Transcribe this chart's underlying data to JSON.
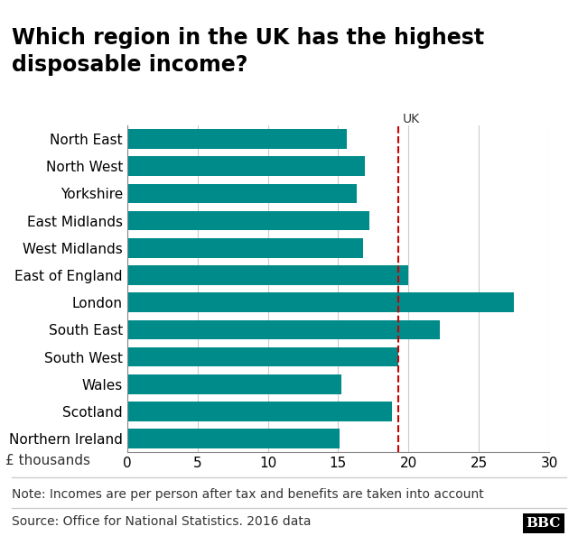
{
  "title": "Which region in the UK has the highest\ndisposable income?",
  "regions": [
    "North East",
    "North West",
    "Yorkshire",
    "East Midlands",
    "West Midlands",
    "East of England",
    "London",
    "South East",
    "South West",
    "Wales",
    "Scotland",
    "Northern Ireland"
  ],
  "values": [
    15.6,
    16.9,
    16.3,
    17.2,
    16.8,
    20.0,
    27.5,
    22.2,
    19.3,
    15.2,
    18.8,
    15.1
  ],
  "bar_color": "#008b8b",
  "vline_x": 19.3,
  "vline_color": "#cc0000",
  "vline_label": "UK",
  "xlabel": "£ thousands",
  "xlim": [
    0,
    30
  ],
  "xticks": [
    0,
    5,
    10,
    15,
    20,
    25,
    30
  ],
  "note": "Note: Incomes are per person after tax and benefits are taken into account",
  "source": "Source: Office for National Statistics. 2016 data",
  "bbc_label": "BBC",
  "background_color": "#ffffff",
  "title_fontsize": 17,
  "tick_fontsize": 11,
  "note_fontsize": 10,
  "bar_color_hex": "#008b8b",
  "grid_color": "#cccccc",
  "separator_color": "#cccccc"
}
